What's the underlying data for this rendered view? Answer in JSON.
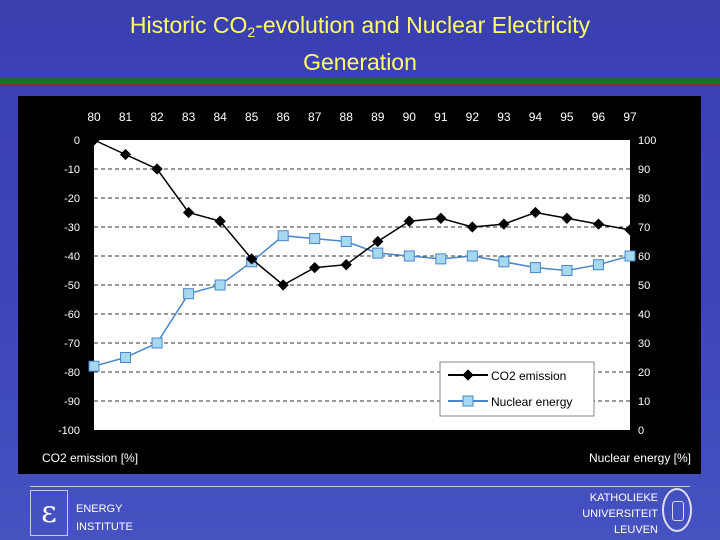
{
  "slide": {
    "title_part1": "Historic CO",
    "title_sub": "2",
    "title_part2": "-evolution and Nuclear Electricity",
    "title_line2": "Generation"
  },
  "footer": {
    "left_logo_glyph": "ε",
    "institute_line1": "ENERGY",
    "institute_line2": "INSTITUTE",
    "university_line1": "KATHOLIEKE",
    "university_line2": "UNIVERSITEIT",
    "university_line3": "LEUVEN"
  },
  "colors": {
    "background": "#3d46b8",
    "title": "#ffff66",
    "co2_line": "#000000",
    "nuclear_line": "#4a86c8",
    "nuclear_marker": "#a6d8f0"
  },
  "chart_data": {
    "type": "line",
    "categories": [
      "80",
      "81",
      "82",
      "83",
      "84",
      "85",
      "86",
      "87",
      "88",
      "89",
      "90",
      "91",
      "92",
      "93",
      "94",
      "95",
      "96",
      "97"
    ],
    "series": [
      {
        "name": "CO2 emission",
        "axis": "left",
        "values": [
          0,
          -5,
          -10,
          -25,
          -28,
          -41,
          -50,
          -44,
          -43,
          -35,
          -28,
          -27,
          -30,
          -29,
          -25,
          -27,
          -29,
          -31
        ]
      },
      {
        "name": "Nuclear energy",
        "axis": "right",
        "values": [
          22,
          25,
          30,
          47,
          50,
          58,
          67,
          66,
          65,
          61,
          60,
          59,
          60,
          58,
          56,
          55,
          57,
          60
        ]
      }
    ],
    "y_left": {
      "label": "CO2 emission [%]",
      "ylim": [
        -100,
        0
      ],
      "ticks": [
        "0",
        "-10",
        "-20",
        "-30",
        "-40",
        "-50",
        "-60",
        "-70",
        "-80",
        "-90",
        "-100"
      ]
    },
    "y_right": {
      "label": "Nuclear energy [%]",
      "ylim": [
        0,
        100
      ],
      "ticks": [
        "100",
        "90",
        "80",
        "70",
        "60",
        "50",
        "40",
        "30",
        "20",
        "10",
        "0"
      ]
    },
    "grid": true,
    "legend_position": "bottom-right"
  }
}
